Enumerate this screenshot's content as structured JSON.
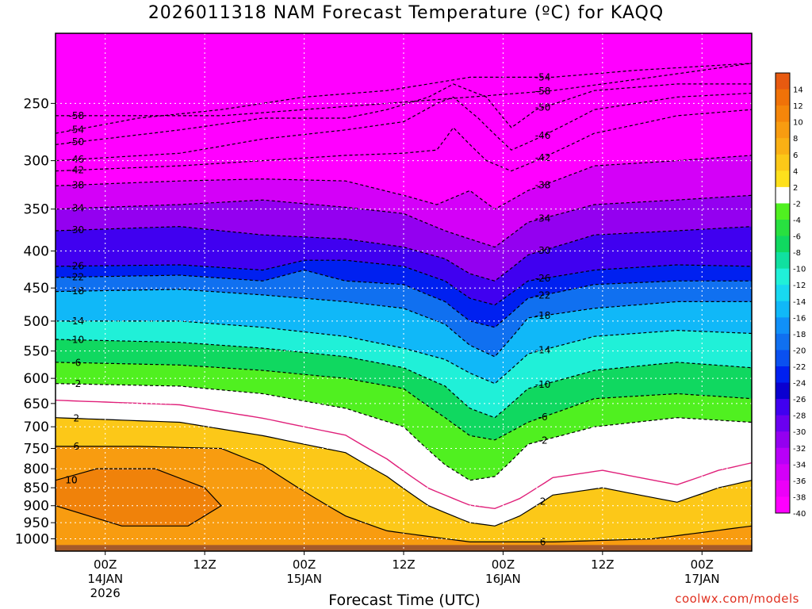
{
  "title": "2026011318 NAM Forecast Temperature (ºC) for KAQQ",
  "xlabel": "Forecast Time (UTC)",
  "credit": "coolwx.com/models",
  "chart_data": {
    "type": "heatmap",
    "y_scale": "log-pressure",
    "ylim": [
      1040,
      200
    ],
    "y_ticks": [
      250,
      300,
      350,
      400,
      450,
      500,
      550,
      600,
      650,
      700,
      750,
      800,
      850,
      900,
      950,
      1000
    ],
    "x_ticks": [
      {
        "label": "00Z",
        "sub": [
          "14JAN",
          "2026"
        ],
        "hours": 6
      },
      {
        "label": "12Z",
        "sub": [],
        "hours": 18
      },
      {
        "label": "00Z",
        "sub": [
          "15JAN"
        ],
        "hours": 30
      },
      {
        "label": "12Z",
        "sub": [],
        "hours": 42
      },
      {
        "label": "00Z",
        "sub": [
          "16JAN"
        ],
        "hours": 54
      },
      {
        "label": "12Z",
        "sub": [],
        "hours": 66
      },
      {
        "label": "00Z",
        "sub": [
          "17JAN"
        ],
        "hours": 78
      }
    ],
    "xlim": [
      0,
      84
    ],
    "colorbar": {
      "labels": [
        "14",
        "12",
        "10",
        "8",
        "6",
        "4",
        "2",
        "-2",
        "-4",
        "-6",
        "-8",
        "-10",
        "-12",
        "-14",
        "-16",
        "-18",
        "-20",
        "-22",
        "-24",
        "-26",
        "-28",
        "-30",
        "-32",
        "-34",
        "-36",
        "-38",
        "-40"
      ],
      "colors": [
        "#e85a10",
        "#f07208",
        "#f5860a",
        "#f89c10",
        "#fab014",
        "#fcc818",
        "#fee01c",
        "#ffffff",
        "#50f020",
        "#28e040",
        "#10d860",
        "#10e0a0",
        "#20f0d8",
        "#18d8f0",
        "#10b8f8",
        "#1090f8",
        "#1070f0",
        "#0a50f0",
        "#0020f0",
        "#0a00d0",
        "#4000f0",
        "#6a00f0",
        "#9400f0",
        "#b800f8",
        "#d400f8",
        "#ec00f8",
        "#ff00ff"
      ]
    },
    "contours": [
      {
        "value": -58,
        "label": "-58",
        "levels": [
          [
            0,
            260
          ],
          [
            20,
            260
          ],
          [
            40,
            250
          ],
          [
            60,
            240
          ],
          [
            84,
            220
          ]
        ]
      },
      {
        "value": -54,
        "label": "-54",
        "levels": [
          [
            0,
            275
          ],
          [
            10,
            262
          ],
          [
            20,
            255
          ],
          [
            30,
            245
          ],
          [
            40,
            240
          ],
          [
            50,
            230
          ],
          [
            60,
            230
          ],
          [
            70,
            225
          ],
          [
            84,
            220
          ]
        ]
      },
      {
        "value": -50,
        "label": "-50",
        "levels": [
          [
            0,
            285
          ],
          [
            15,
            272
          ],
          [
            25,
            262
          ],
          [
            35,
            262
          ],
          [
            40,
            255
          ],
          [
            45,
            245
          ],
          [
            48,
            235
          ],
          [
            52,
            245
          ],
          [
            55,
            270
          ],
          [
            58,
            255
          ],
          [
            65,
            240
          ],
          [
            75,
            235
          ],
          [
            84,
            235
          ]
        ]
      },
      {
        "value": -46,
        "label": "-46",
        "levels": [
          [
            0,
            300
          ],
          [
            15,
            293
          ],
          [
            25,
            280
          ],
          [
            35,
            272
          ],
          [
            42,
            265
          ],
          [
            46,
            250
          ],
          [
            48,
            245
          ],
          [
            51,
            262
          ],
          [
            55,
            290
          ],
          [
            58,
            280
          ],
          [
            65,
            255
          ],
          [
            75,
            245
          ],
          [
            84,
            242
          ]
        ]
      },
      {
        "value": -42,
        "label": "-42",
        "levels": [
          [
            0,
            310
          ],
          [
            15,
            305
          ],
          [
            25,
            300
          ],
          [
            35,
            295
          ],
          [
            42,
            293
          ],
          [
            46,
            290
          ],
          [
            48,
            270
          ],
          [
            52,
            300
          ],
          [
            55,
            310
          ],
          [
            58,
            300
          ],
          [
            65,
            275
          ],
          [
            75,
            260
          ],
          [
            84,
            255
          ]
        ]
      },
      {
        "value": -38,
        "label": "-38",
        "levels": [
          [
            0,
            325
          ],
          [
            15,
            320
          ],
          [
            25,
            318
          ],
          [
            35,
            320
          ],
          [
            42,
            335
          ],
          [
            46,
            345
          ],
          [
            50,
            330
          ],
          [
            53,
            350
          ],
          [
            57,
            330
          ],
          [
            65,
            305
          ],
          [
            75,
            300
          ],
          [
            84,
            295
          ]
        ]
      },
      {
        "value": -34,
        "label": "-34",
        "levels": [
          [
            0,
            350
          ],
          [
            15,
            345
          ],
          [
            25,
            340
          ],
          [
            35,
            348
          ],
          [
            42,
            355
          ],
          [
            47,
            375
          ],
          [
            50,
            385
          ],
          [
            53,
            395
          ],
          [
            57,
            365
          ],
          [
            65,
            345
          ],
          [
            75,
            340
          ],
          [
            84,
            335
          ]
        ]
      },
      {
        "value": -30,
        "label": "-30",
        "levels": [
          [
            0,
            375
          ],
          [
            15,
            370
          ],
          [
            25,
            380
          ],
          [
            35,
            385
          ],
          [
            42,
            395
          ],
          [
            47,
            410
          ],
          [
            50,
            430
          ],
          [
            53,
            440
          ],
          [
            57,
            405
          ],
          [
            65,
            380
          ],
          [
            75,
            375
          ],
          [
            84,
            370
          ]
        ]
      },
      {
        "value": -26,
        "label": "-26",
        "levels": [
          [
            0,
            420
          ],
          [
            15,
            418
          ],
          [
            25,
            425
          ],
          [
            30,
            412
          ],
          [
            35,
            412
          ],
          [
            42,
            420
          ],
          [
            47,
            440
          ],
          [
            50,
            465
          ],
          [
            53,
            475
          ],
          [
            57,
            440
          ],
          [
            65,
            425
          ],
          [
            75,
            418
          ],
          [
            84,
            420
          ]
        ]
      },
      {
        "value": -22,
        "label": "-22",
        "levels": [
          [
            0,
            435
          ],
          [
            15,
            432
          ],
          [
            25,
            440
          ],
          [
            30,
            425
          ],
          [
            35,
            440
          ],
          [
            42,
            445
          ],
          [
            47,
            470
          ],
          [
            50,
            500
          ],
          [
            53,
            510
          ],
          [
            57,
            465
          ],
          [
            65,
            445
          ],
          [
            75,
            440
          ],
          [
            84,
            440
          ]
        ]
      },
      {
        "value": -18,
        "label": "-18",
        "levels": [
          [
            0,
            455
          ],
          [
            15,
            452
          ],
          [
            25,
            460
          ],
          [
            35,
            470
          ],
          [
            42,
            480
          ],
          [
            47,
            505
          ],
          [
            50,
            540
          ],
          [
            53,
            560
          ],
          [
            57,
            495
          ],
          [
            65,
            480
          ],
          [
            75,
            470
          ],
          [
            84,
            470
          ]
        ]
      },
      {
        "value": -14,
        "label": "-14",
        "levels": [
          [
            0,
            500
          ],
          [
            15,
            500
          ],
          [
            25,
            510
          ],
          [
            35,
            525
          ],
          [
            42,
            545
          ],
          [
            47,
            565
          ],
          [
            50,
            590
          ],
          [
            53,
            610
          ],
          [
            57,
            555
          ],
          [
            65,
            525
          ],
          [
            75,
            515
          ],
          [
            84,
            520
          ]
        ]
      },
      {
        "value": -10,
        "label": "-10",
        "levels": [
          [
            0,
            530
          ],
          [
            15,
            535
          ],
          [
            25,
            545
          ],
          [
            35,
            560
          ],
          [
            42,
            580
          ],
          [
            47,
            615
          ],
          [
            50,
            660
          ],
          [
            53,
            680
          ],
          [
            57,
            620
          ],
          [
            65,
            585
          ],
          [
            75,
            570
          ],
          [
            84,
            580
          ]
        ]
      },
      {
        "value": -6,
        "label": "-6",
        "levels": [
          [
            0,
            570
          ],
          [
            15,
            575
          ],
          [
            25,
            585
          ],
          [
            35,
            600
          ],
          [
            42,
            620
          ],
          [
            47,
            680
          ],
          [
            50,
            720
          ],
          [
            53,
            730
          ],
          [
            57,
            690
          ],
          [
            65,
            640
          ],
          [
            75,
            630
          ],
          [
            84,
            640
          ]
        ]
      },
      {
        "value": -2,
        "label": "-2",
        "levels": [
          [
            0,
            610
          ],
          [
            15,
            615
          ],
          [
            25,
            630
          ],
          [
            35,
            660
          ],
          [
            42,
            700
          ],
          [
            47,
            790
          ],
          [
            50,
            830
          ],
          [
            53,
            820
          ],
          [
            57,
            740
          ],
          [
            65,
            700
          ],
          [
            75,
            680
          ],
          [
            84,
            690
          ]
        ]
      },
      {
        "value": 2,
        "label": "2",
        "levels": [
          [
            0,
            680
          ],
          [
            15,
            690
          ],
          [
            25,
            720
          ],
          [
            35,
            760
          ],
          [
            40,
            820
          ],
          [
            45,
            900
          ],
          [
            50,
            950
          ],
          [
            53,
            960
          ],
          [
            56,
            930
          ],
          [
            60,
            870
          ],
          [
            66,
            850
          ],
          [
            75,
            890
          ],
          [
            80,
            850
          ],
          [
            84,
            830
          ]
        ]
      },
      {
        "value": 6,
        "label": "6",
        "levels": [
          [
            0,
            745
          ],
          [
            10,
            745
          ],
          [
            20,
            750
          ],
          [
            25,
            790
          ],
          [
            30,
            860
          ],
          [
            35,
            930
          ],
          [
            40,
            975
          ],
          [
            50,
            1010
          ],
          [
            60,
            1010
          ],
          [
            72,
            1000
          ],
          [
            84,
            960
          ]
        ]
      },
      {
        "value": 10,
        "label": "10",
        "levels": [
          [
            0,
            830
          ],
          [
            5,
            800
          ],
          [
            12,
            800
          ],
          [
            18,
            850
          ],
          [
            20,
            900
          ],
          [
            16,
            960
          ],
          [
            8,
            960
          ],
          [
            0,
            900
          ]
        ]
      }
    ]
  }
}
